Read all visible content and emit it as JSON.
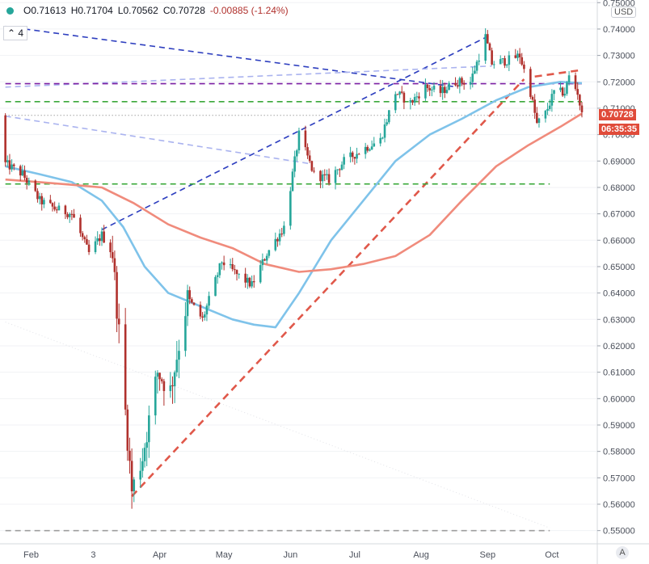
{
  "header": {
    "open": "O0.71613",
    "high": "H0.71704",
    "low": "L0.70562",
    "close": "C0.70728",
    "change": "-0.00885 (-1.24%)",
    "studies_count": "4",
    "status_color": "#26a69a"
  },
  "currency_label": "USD",
  "auto_label": "A",
  "last_price": {
    "label": "0.70728",
    "countdown": "06:35:35",
    "color": "#e04b3a"
  },
  "chart_data": {
    "type": "candlestick",
    "y_axis": {
      "side": "right",
      "min": 0.545,
      "max": 0.751,
      "ticks": [
        "0.75000",
        "0.74000",
        "0.73000",
        "0.72000",
        "0.71000",
        "0.70000",
        "0.69000",
        "0.68000",
        "0.67000",
        "0.66000",
        "0.65000",
        "0.64000",
        "0.63000",
        "0.62000",
        "0.61000",
        "0.60000",
        "0.59000",
        "0.58000",
        "0.57000",
        "0.56000",
        "0.55000"
      ]
    },
    "x_axis": {
      "labels": [
        "Feb",
        "3",
        "Apr",
        "May",
        "Jun",
        "Jul",
        "Aug",
        "Sep",
        "Oct"
      ]
    },
    "colors": {
      "up": "#26a69a",
      "down": "#b0312d",
      "ma_short": "#7fc3ea",
      "ma_long": "#f08b7c"
    },
    "anchors": [
      [
        "2020-01-20",
        0.689
      ],
      [
        "2020-01-28",
        0.685
      ],
      [
        "2020-02-05",
        0.675
      ],
      [
        "2020-02-12",
        0.672
      ],
      [
        "2020-02-20",
        0.67
      ],
      [
        "2020-02-28",
        0.655
      ],
      [
        "2020-03-05",
        0.662
      ],
      [
        "2020-03-10",
        0.655
      ],
      [
        "2020-03-19",
        0.565
      ],
      [
        "2020-03-24",
        0.578
      ],
      [
        "2020-03-31",
        0.61
      ],
      [
        "2020-04-06",
        0.603
      ],
      [
        "2020-04-14",
        0.638
      ],
      [
        "2020-04-21",
        0.63
      ],
      [
        "2020-04-30",
        0.652
      ],
      [
        "2020-05-07",
        0.647
      ],
      [
        "2020-05-14",
        0.643
      ],
      [
        "2020-05-21",
        0.655
      ],
      [
        "2020-05-29",
        0.665
      ],
      [
        "2020-06-05",
        0.7
      ],
      [
        "2020-06-12",
        0.685
      ],
      [
        "2020-06-19",
        0.683
      ],
      [
        "2020-06-26",
        0.69
      ],
      [
        "2020-07-06",
        0.695
      ],
      [
        "2020-07-13",
        0.698
      ],
      [
        "2020-07-20",
        0.716
      ],
      [
        "2020-07-27",
        0.712
      ],
      [
        "2020-08-03",
        0.718
      ],
      [
        "2020-08-10",
        0.716
      ],
      [
        "2020-08-17",
        0.72
      ],
      [
        "2020-08-24",
        0.72
      ],
      [
        "2020-08-31",
        0.737
      ],
      [
        "2020-09-03",
        0.727
      ],
      [
        "2020-09-10",
        0.728
      ],
      [
        "2020-09-16",
        0.73
      ],
      [
        "2020-09-21",
        0.716
      ],
      [
        "2020-09-24",
        0.704
      ],
      [
        "2020-09-28",
        0.708
      ],
      [
        "2020-10-02",
        0.716
      ],
      [
        "2020-10-07",
        0.716
      ],
      [
        "2020-10-09",
        0.722
      ],
      [
        "2020-10-13",
        0.716
      ],
      [
        "2020-10-15",
        0.7073
      ]
    ],
    "moving_averages": [
      {
        "id": "ma_short",
        "points": [
          [
            "2020-01-20",
            0.688
          ],
          [
            "2020-02-05",
            0.685
          ],
          [
            "2020-02-20",
            0.682
          ],
          [
            "2020-03-05",
            0.675
          ],
          [
            "2020-03-15",
            0.665
          ],
          [
            "2020-03-25",
            0.65
          ],
          [
            "2020-04-05",
            0.64
          ],
          [
            "2020-04-20",
            0.635
          ],
          [
            "2020-05-05",
            0.63
          ],
          [
            "2020-05-15",
            0.628
          ],
          [
            "2020-05-25",
            0.627
          ],
          [
            "2020-06-05",
            0.64
          ],
          [
            "2020-06-20",
            0.66
          ],
          [
            "2020-07-05",
            0.675
          ],
          [
            "2020-07-20",
            0.69
          ],
          [
            "2020-08-05",
            0.7
          ],
          [
            "2020-08-20",
            0.706
          ],
          [
            "2020-09-05",
            0.713
          ],
          [
            "2020-09-20",
            0.718
          ],
          [
            "2020-10-05",
            0.72
          ],
          [
            "2020-10-15",
            0.7195
          ]
        ]
      },
      {
        "id": "ma_long",
        "points": [
          [
            "2020-01-20",
            0.683
          ],
          [
            "2020-02-05",
            0.682
          ],
          [
            "2020-02-20",
            0.681
          ],
          [
            "2020-03-05",
            0.68
          ],
          [
            "2020-03-20",
            0.674
          ],
          [
            "2020-04-05",
            0.666
          ],
          [
            "2020-04-20",
            0.661
          ],
          [
            "2020-05-05",
            0.657
          ],
          [
            "2020-05-20",
            0.651
          ],
          [
            "2020-06-05",
            0.648
          ],
          [
            "2020-06-20",
            0.649
          ],
          [
            "2020-07-05",
            0.651
          ],
          [
            "2020-07-20",
            0.654
          ],
          [
            "2020-08-05",
            0.662
          ],
          [
            "2020-08-20",
            0.675
          ],
          [
            "2020-09-05",
            0.688
          ],
          [
            "2020-09-20",
            0.696
          ],
          [
            "2020-10-05",
            0.703
          ],
          [
            "2020-10-15",
            0.708
          ]
        ]
      }
    ],
    "lines": [
      {
        "style": "dashed",
        "color": "#2e3fbf",
        "from": [
          "2020-01-20",
          0.741
        ],
        "to": [
          "2020-08-18",
          0.718
        ]
      },
      {
        "style": "dashed",
        "color": "#2e3fbf",
        "from": [
          "2020-03-05",
          0.664
        ],
        "to": [
          "2020-09-03",
          0.738
        ]
      },
      {
        "style": "dashed",
        "color": "#aab3ef",
        "from": [
          "2020-01-20",
          0.718
        ],
        "to": [
          "2020-09-03",
          0.726
        ]
      },
      {
        "style": "dashed",
        "color": "#aab3ef",
        "from": [
          "2020-01-20",
          0.707
        ],
        "to": [
          "2020-06-10",
          0.689
        ]
      },
      {
        "style": "dashed",
        "color": "#e0584a",
        "from": [
          "2020-03-19",
          0.563
        ],
        "to": [
          "2020-09-18",
          0.721
        ]
      },
      {
        "style": "dashed",
        "color": "#e0584a",
        "from": [
          "2020-09-23",
          0.722
        ],
        "to": [
          "2020-10-15",
          0.7245
        ]
      },
      {
        "style": "dashed",
        "color": "#7b1fa2",
        "from": [
          "2020-01-20",
          0.7193
        ],
        "to": [
          "2020-10-15",
          0.7193
        ]
      },
      {
        "style": "dashed",
        "color": "#3aa83a",
        "from": [
          "2020-01-20",
          0.7125
        ],
        "to": [
          "2020-10-15",
          0.7125
        ]
      },
      {
        "style": "dashed",
        "color": "#3aa83a",
        "from": [
          "2020-01-20",
          0.6813
        ],
        "to": [
          "2020-09-30",
          0.6813
        ]
      },
      {
        "style": "dashed",
        "color": "#9e9e9e",
        "from": [
          "2020-01-20",
          0.55
        ],
        "to": [
          "2020-09-30",
          0.55
        ]
      },
      {
        "style": "dotted",
        "color": "#777777",
        "from": [
          "2020-01-20",
          0.7073
        ],
        "to": [
          "2020-10-15",
          0.7073
        ]
      },
      {
        "style": "dotted",
        "color": "#e2e3e8",
        "from": [
          "2020-01-20",
          0.629
        ],
        "to": [
          "2020-09-30",
          0.551
        ]
      }
    ],
    "grid": true
  }
}
